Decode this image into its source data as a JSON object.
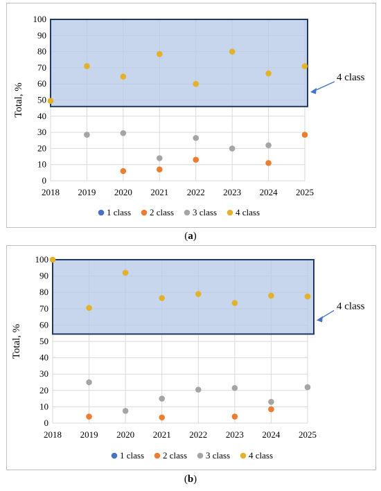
{
  "legend_items": [
    {
      "label": "1 class",
      "color": "#4472C4"
    },
    {
      "label": "2 class",
      "color": "#ED7D31"
    },
    {
      "label": "3 class",
      "color": "#A5A5A5"
    },
    {
      "label": "4 class",
      "color": "#E2B22B"
    }
  ],
  "chart_data": [
    {
      "type": "scatter",
      "panel_label": "a",
      "ylabel": "Total, %",
      "xlabel": "",
      "x": [
        2018,
        2019,
        2020,
        2021,
        2022,
        2023,
        2024,
        2025
      ],
      "x_ticks": [
        "2018",
        "2019",
        "2020",
        "2021",
        "2022",
        "2023",
        "2024",
        "2025"
      ],
      "y_ticks": [
        "0",
        "10",
        "20",
        "30",
        "40",
        "50",
        "60",
        "70",
        "80",
        "90",
        "100"
      ],
      "ylim": [
        0,
        100
      ],
      "grid": true,
      "legend_position": "bottom",
      "series": [
        {
          "name": "1 class",
          "color": "#4472C4",
          "points": []
        },
        {
          "name": "2 class",
          "color": "#ED7D31",
          "points": [
            [
              2020,
              6
            ],
            [
              2021,
              7
            ],
            [
              2022,
              13
            ],
            [
              2024,
              11
            ],
            [
              2025,
              28.5
            ]
          ]
        },
        {
          "name": "3 class",
          "color": "#A5A5A5",
          "points": [
            [
              2019,
              28.5
            ],
            [
              2020,
              29.5
            ],
            [
              2021,
              14
            ],
            [
              2022,
              26.5
            ],
            [
              2023,
              20
            ],
            [
              2024,
              22
            ]
          ]
        },
        {
          "name": "4 class",
          "color": "#E2B22B",
          "points": [
            [
              2018,
              49.5
            ],
            [
              2019,
              71
            ],
            [
              2020,
              64.5
            ],
            [
              2021,
              78.5
            ],
            [
              2022,
              60
            ],
            [
              2023,
              80
            ],
            [
              2024,
              66.5
            ],
            [
              2025,
              71
            ]
          ]
        }
      ],
      "highlight": {
        "label": "4 class",
        "y_range": [
          46,
          100
        ],
        "fill": "#B4C7E7",
        "border": "#203864"
      }
    },
    {
      "type": "scatter",
      "panel_label": "b",
      "ylabel": "Total, %",
      "xlabel": "",
      "x": [
        2018,
        2019,
        2020,
        2021,
        2022,
        2023,
        2024,
        2025
      ],
      "x_ticks": [
        "2018",
        "2019",
        "2020",
        "2021",
        "2022",
        "2023",
        "2024",
        "2025"
      ],
      "y_ticks": [
        "0",
        "10",
        "20",
        "30",
        "40",
        "50",
        "60",
        "70",
        "80",
        "90",
        "100"
      ],
      "ylim": [
        0,
        100
      ],
      "grid": true,
      "legend_position": "bottom",
      "series": [
        {
          "name": "1 class",
          "color": "#4472C4",
          "points": []
        },
        {
          "name": "2 class",
          "color": "#ED7D31",
          "points": [
            [
              2019,
              4
            ],
            [
              2021,
              3.5
            ],
            [
              2023,
              4
            ],
            [
              2024,
              8.5
            ]
          ]
        },
        {
          "name": "3 class",
          "color": "#A5A5A5",
          "points": [
            [
              2019,
              25
            ],
            [
              2020,
              7.5
            ],
            [
              2021,
              15
            ],
            [
              2022,
              20.5
            ],
            [
              2023,
              21.5
            ],
            [
              2024,
              13
            ],
            [
              2025,
              22
            ]
          ]
        },
        {
          "name": "4 class",
          "color": "#E2B22B",
          "points": [
            [
              2018,
              100
            ],
            [
              2019,
              70.5
            ],
            [
              2020,
              92
            ],
            [
              2021,
              76.5
            ],
            [
              2022,
              79
            ],
            [
              2023,
              73.5
            ],
            [
              2024,
              78
            ],
            [
              2025,
              77.5
            ]
          ]
        }
      ],
      "highlight": {
        "label": "4 class",
        "y_range": [
          54.5,
          100
        ],
        "fill": "#B4C7E7",
        "border": "#203864"
      }
    }
  ]
}
